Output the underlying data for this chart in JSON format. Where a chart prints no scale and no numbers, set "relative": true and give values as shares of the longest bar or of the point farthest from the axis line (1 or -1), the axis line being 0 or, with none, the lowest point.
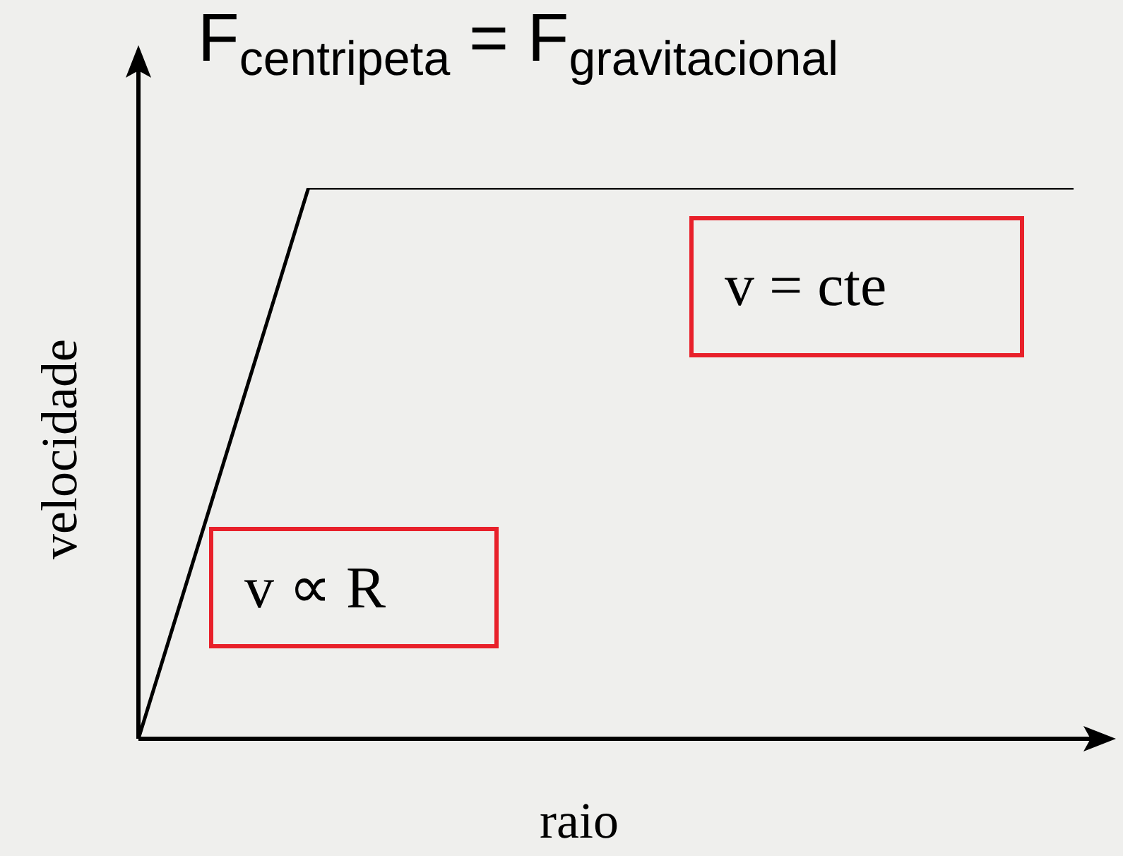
{
  "chart_data": {
    "type": "line",
    "title": "F$_{centripeta}$ = F$_{gravitacional}$",
    "xlabel": "raio",
    "ylabel": "velocidade",
    "relative": true,
    "categories": [
      null,
      null,
      null,
      null,
      null,
      null,
      null,
      null,
      null,
      null,
      null,
      null
    ],
    "series": [
      {
        "color": "#000000",
        "values": [
          0,
          0.5,
          1,
          1,
          1,
          1,
          1,
          1,
          1,
          1,
          1,
          1
        ]
      }
    ],
    "annotations": [
      "v = cte",
      "v ∝ R"
    ],
    "legend": false,
    "marker": "none",
    "line_style": "solid"
  }
}
